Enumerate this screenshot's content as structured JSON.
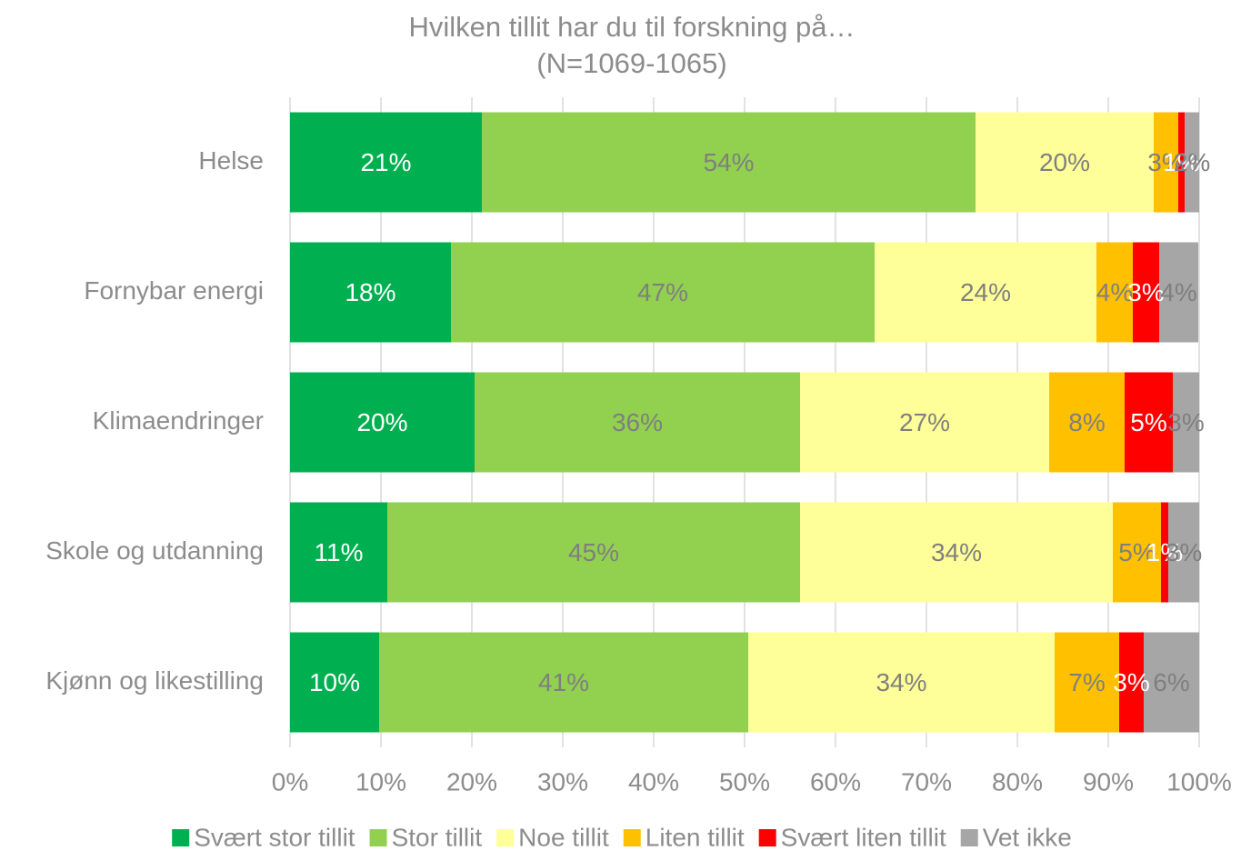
{
  "chart_data": {
    "type": "stacked_bar_horizontal",
    "title": "Hvilken tillit har du til forskning på…",
    "subtitle": "(N=1069-1065)",
    "categories": [
      "Helse",
      "Fornybar energi",
      "Klimaendringer",
      "Skole og utdanning",
      "Kjønn og likestilling"
    ],
    "series": [
      {
        "name": "Svært stor tillit",
        "color": "#00b050",
        "values": [
          21.1,
          17.7,
          20.3,
          10.7,
          9.8
        ],
        "value_labels": [
          "21%",
          "18%",
          "20%",
          "11%",
          "10%"
        ]
      },
      {
        "name": "Stor tillit",
        "color": "#92d050",
        "values": [
          54.3,
          46.6,
          35.8,
          45.4,
          40.6
        ],
        "value_labels": [
          "54%",
          "47%",
          "36%",
          "45%",
          "41%"
        ]
      },
      {
        "name": "Noe tillit",
        "color": "#ffff99",
        "values": [
          19.6,
          24.4,
          27.4,
          34.4,
          33.7
        ],
        "value_labels": [
          "20%",
          "24%",
          "27%",
          "34%",
          "34%"
        ]
      },
      {
        "name": "Liten tillit",
        "color": "#ffc000",
        "values": [
          2.7,
          4.0,
          8.3,
          5.3,
          7.1
        ],
        "value_labels": [
          "3%",
          "4%",
          "8%",
          "5%",
          "7%"
        ]
      },
      {
        "name": "Svært liten tillit",
        "color": "#ff0000",
        "values": [
          0.7,
          2.9,
          5.3,
          0.8,
          2.7
        ],
        "value_labels": [
          "1%",
          "3%",
          "5%",
          "1%",
          "3%"
        ]
      },
      {
        "name": "Vet ikke",
        "color": "#a6a6a6",
        "values": [
          1.6,
          4.3,
          2.9,
          3.4,
          6.1
        ],
        "value_labels": [
          "2%",
          "4%",
          "3%",
          "3%",
          "6%"
        ]
      }
    ],
    "xlim": [
      0,
      100
    ],
    "xticks": [
      {
        "value": 0,
        "label": "0%"
      },
      {
        "value": 10,
        "label": "10%"
      },
      {
        "value": 20,
        "label": "20%"
      },
      {
        "value": 30,
        "label": "30%"
      },
      {
        "value": 40,
        "label": "40%"
      },
      {
        "value": 50,
        "label": "50%"
      },
      {
        "value": 60,
        "label": "60%"
      },
      {
        "value": 70,
        "label": "70%"
      },
      {
        "value": 80,
        "label": "80%"
      },
      {
        "value": 90,
        "label": "90%"
      },
      {
        "value": 100,
        "label": "100%"
      }
    ],
    "grid": true,
    "legend": "bottom"
  }
}
